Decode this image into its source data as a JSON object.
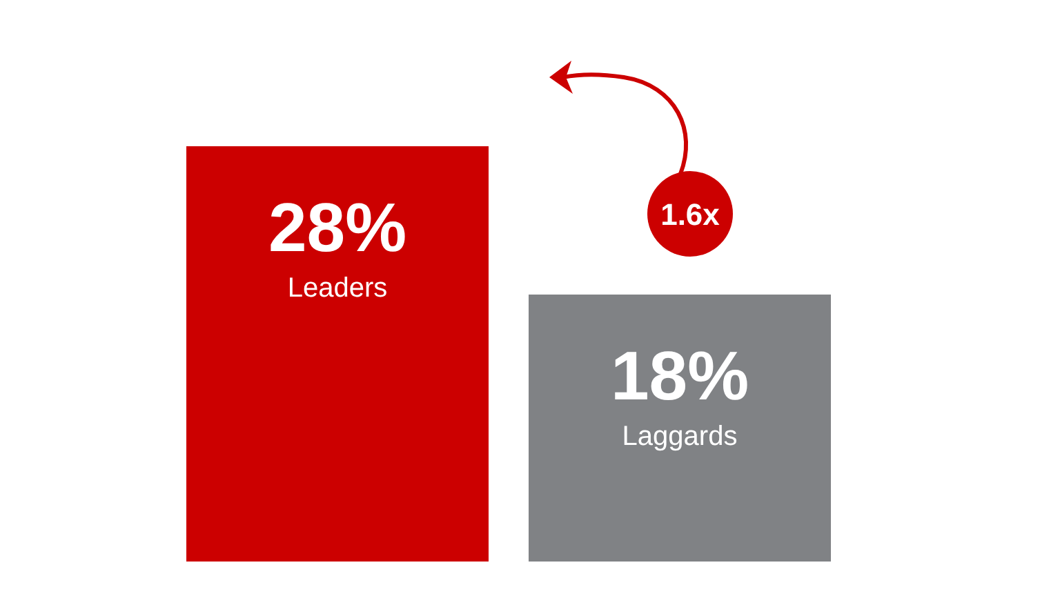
{
  "chart_data": {
    "type": "bar",
    "categories": [
      "Leaders",
      "Laggards"
    ],
    "values": [
      28,
      18
    ],
    "colors": [
      "#cc0000",
      "#808285"
    ],
    "value_labels": [
      "28%",
      "18%"
    ],
    "annotations": [
      "1.6x"
    ]
  }
}
